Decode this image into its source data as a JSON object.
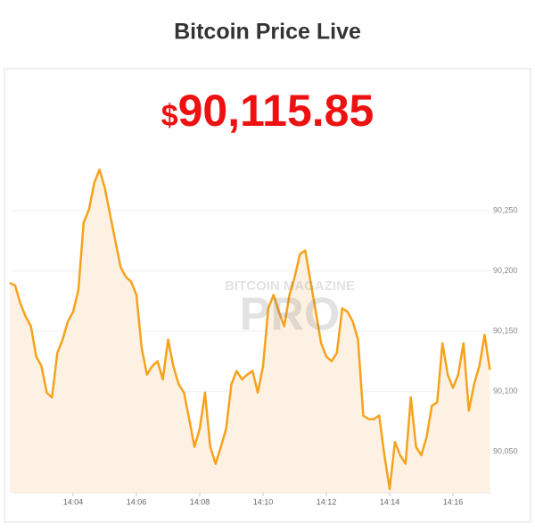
{
  "header": {
    "title": "Bitcoin Price Live"
  },
  "ticker": {
    "currency": "$",
    "price": "90,115.85"
  },
  "watermark": {
    "top": "BITCOIN MAGAZINE",
    "brand": "PRO"
  },
  "chart_data": {
    "type": "line",
    "color": "#f7a21b",
    "fill": "#fdf1e3",
    "grid": true,
    "categories": [
      null,
      null,
      null,
      null,
      null,
      null,
      null,
      null,
      null,
      null,
      null,
      null,
      "14:04",
      null,
      null,
      null,
      null,
      null,
      null,
      null,
      null,
      null,
      null,
      null,
      "14:06",
      null,
      null,
      null,
      null,
      null,
      null,
      null,
      null,
      null,
      null,
      null,
      "14:08",
      null,
      null,
      null,
      null,
      null,
      null,
      null,
      null,
      null,
      null,
      null,
      "14:10",
      null,
      null,
      null,
      null,
      null,
      null,
      null,
      null,
      null,
      null,
      null,
      "14:12",
      null,
      null,
      null,
      null,
      null,
      null,
      null,
      null,
      null,
      null,
      null,
      "14:14",
      null,
      null,
      null,
      null,
      null,
      null,
      null,
      null,
      null,
      null,
      null,
      "14:16",
      null,
      null,
      null,
      null,
      null,
      null,
      null
    ],
    "values": [
      90190,
      90188,
      90173,
      90162,
      90154,
      90129,
      90121,
      90099,
      90095,
      90132,
      90143,
      90158,
      90166,
      90184,
      90240,
      90251,
      90273,
      90284,
      90269,
      90247,
      90225,
      90203,
      90195,
      90191,
      90180,
      90136,
      90114,
      90121,
      90125,
      90110,
      90143,
      90121,
      90106,
      90099,
      90077,
      90054,
      90069,
      90099,
      90054,
      90040,
      90054,
      90069,
      90106,
      90117,
      90110,
      90114,
      90117,
      90099,
      90121,
      90169,
      90180,
      90166,
      90154,
      90180,
      90195,
      90214,
      90217,
      90191,
      90166,
      90140,
      90129,
      90125,
      90132,
      90169,
      90166,
      90158,
      90143,
      90080,
      90077,
      90077,
      90080,
      90047,
      90019,
      90058,
      90047,
      90040,
      90095,
      90054,
      90047,
      90062,
      90088,
      90091,
      90140,
      90114,
      90103,
      90114,
      90140,
      90084,
      90106,
      90121,
      90147,
      90118
    ],
    "ylim": [
      90016,
      90290
    ],
    "yticks": [
      {
        "value": 90050,
        "label": "90,050"
      },
      {
        "value": 90100,
        "label": "90,100"
      },
      {
        "value": 90150,
        "label": "90,150"
      },
      {
        "value": 90200,
        "label": "90,200"
      },
      {
        "value": 90250,
        "label": "90,250"
      }
    ]
  }
}
